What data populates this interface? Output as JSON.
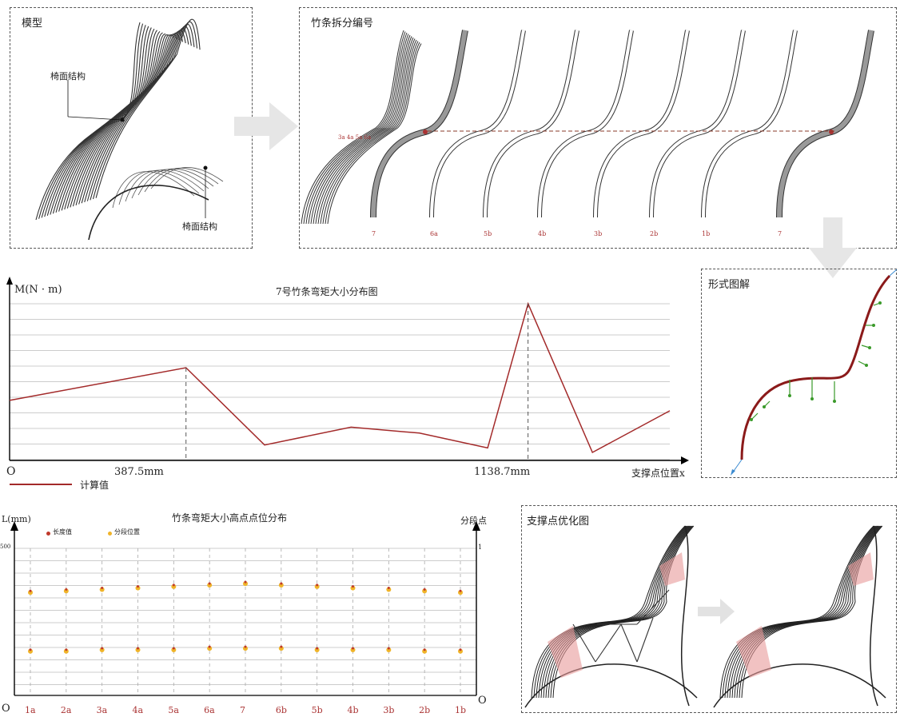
{
  "model_panel": {
    "title": "模型",
    "label_back": "椅面结构",
    "label_seat": "椅面结构"
  },
  "split_panel": {
    "title": "竹条拆分编号",
    "strip_labels": [
      "7",
      "6a",
      "5b",
      "4b",
      "3b",
      "2b",
      "1b",
      "7"
    ],
    "left_stack_label": "3a 4a 5a 6a"
  },
  "moment_chart": {
    "title": "7号竹条弯矩大小分布图",
    "ylabel": "M(N · m)",
    "xlabel": "支撑点位置x",
    "origin": "O",
    "legend": "计算值",
    "marker_labels": [
      "387.5mm",
      "1138.7mm"
    ],
    "color": "#a32a2a"
  },
  "form_panel": {
    "title": "形式图解"
  },
  "points_chart": {
    "title": "竹条弯矩大小高点点位分布",
    "ylabel_left": "L(mm)",
    "ylabel_right": "分段点",
    "left_top_tick": "500",
    "right_top_tick": "1",
    "origin_left": "O",
    "origin_right": "O",
    "legend_length": "长度值",
    "legend_segment": "分段位置",
    "categories": [
      "1a",
      "2a",
      "3a",
      "4a",
      "5a",
      "6a",
      "7",
      "6b",
      "5b",
      "4b",
      "3b",
      "2b",
      "1b"
    ],
    "upper_values": [
      0.7,
      0.71,
      0.72,
      0.73,
      0.74,
      0.75,
      0.76,
      0.75,
      0.74,
      0.73,
      0.72,
      0.71,
      0.7
    ],
    "lower_values": [
      0.3,
      0.3,
      0.31,
      0.31,
      0.31,
      0.32,
      0.32,
      0.32,
      0.31,
      0.31,
      0.31,
      0.3,
      0.3
    ],
    "colors": {
      "length": "#c0392b",
      "segment": "#f0b429"
    }
  },
  "support_panel": {
    "title": "支撑点优化图"
  },
  "chart_data": [
    {
      "type": "line",
      "title": "7号竹条弯矩大小分布图",
      "xlabel": "支撑点位置x",
      "ylabel": "M(N · m)",
      "series": [
        {
          "name": "计算值",
          "x": [
            0,
            387.5,
            560,
            750,
            900,
            1050,
            1138.7,
            1280,
            1450
          ],
          "y": [
            0.35,
            0.57,
            0.05,
            0.17,
            0.13,
            0.03,
            1.0,
            0.0,
            0.28
          ]
        }
      ],
      "annotations": [
        "387.5mm",
        "1138.7mm"
      ]
    },
    {
      "type": "scatter",
      "title": "竹条弯矩大小高点点位分布",
      "categories": [
        "1a",
        "2a",
        "3a",
        "4a",
        "5a",
        "6a",
        "7",
        "6b",
        "5b",
        "4b",
        "3b",
        "2b",
        "1b"
      ],
      "series": [
        {
          "name": "长度值",
          "values": [
            0.7,
            0.71,
            0.72,
            0.73,
            0.74,
            0.75,
            0.76,
            0.75,
            0.74,
            0.73,
            0.72,
            0.71,
            0.7
          ]
        },
        {
          "name": "分段位置",
          "values": [
            0.3,
            0.3,
            0.31,
            0.31,
            0.31,
            0.32,
            0.32,
            0.32,
            0.31,
            0.31,
            0.31,
            0.3,
            0.3
          ]
        }
      ]
    }
  ]
}
